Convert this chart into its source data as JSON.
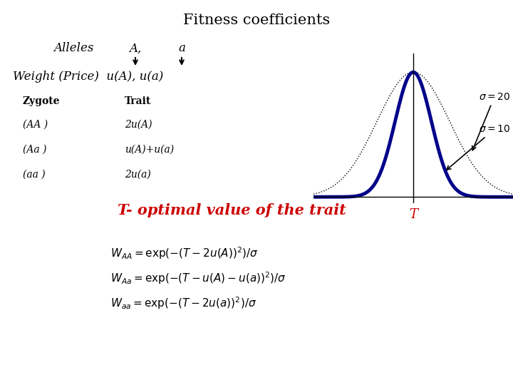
{
  "title": "Fitness coefficients",
  "title_fontsize": 15,
  "bg_color": "#ffffff",
  "alleles_label": "Alleles",
  "alleles_A": "A,",
  "alleles_a": "a",
  "weight_label": "Weight (Price)  u(A), u(a)",
  "table_headers": [
    "Zygote",
    "Trait"
  ],
  "table_rows": [
    [
      "(AA )",
      "2u(A)"
    ],
    [
      "(Aa )",
      "u(A)+u(a)"
    ],
    [
      "(aa )",
      "2u(a)"
    ]
  ],
  "optimal_text": "T- optimal value of the trait",
  "optimal_color": "#cc0000",
  "formula1": "$W_{AA} = \\mathrm{exp}(-(T-2u(A))^2)/\\sigma$",
  "formula2": "$W_{Aa} = \\mathrm{exp}(-(T-u(A)-u(a))^2)/\\sigma$",
  "formula3": "$W_{aa} = \\mathrm{exp}(-(T-2u(a))^2)/\\sigma$",
  "sigma_label1": "$\\sigma = 20$",
  "sigma_label2": "$\\sigma = 10$",
  "T_label": "T",
  "T_color": "#cc0000",
  "curve_color_wide": "#000000",
  "curve_color_narrow": "#00008b",
  "curve_lw_wide": 1.0,
  "curve_lw_narrow": 3.5,
  "curve_ls_wide": "dotted"
}
